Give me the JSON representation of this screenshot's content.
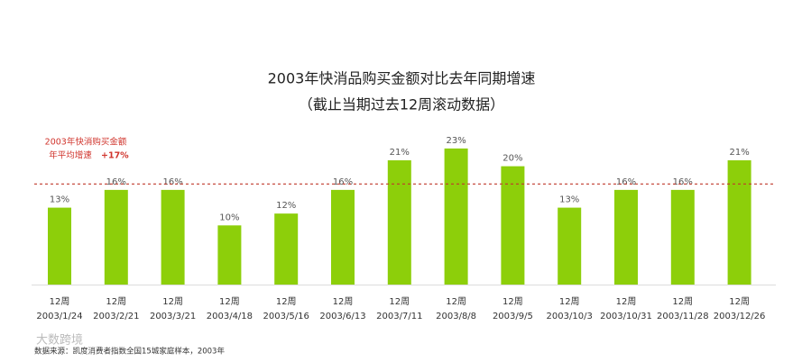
{
  "chart_data": {
    "type": "bar",
    "title": "2003年快消品购买金额对比去年同期增速",
    "subtitle": "（截止当期过去12周滚动数据）",
    "categories": [
      "2003/1/24",
      "2003/2/21",
      "2003/3/21",
      "2003/4/18",
      "2003/5/16",
      "2003/6/13",
      "2003/7/11",
      "2003/8/8",
      "2003/9/5",
      "2003/10/3",
      "2003/10/31",
      "2003/11/28",
      "2003/12/26"
    ],
    "period_labels": [
      "12周",
      "12周",
      "12周",
      "12周",
      "12周",
      "12周",
      "12周",
      "12周",
      "12周",
      "12周",
      "12周",
      "12周",
      "12周"
    ],
    "values": [
      13,
      16,
      16,
      10,
      12,
      16,
      21,
      23,
      20,
      13,
      16,
      16,
      21
    ],
    "value_labels": [
      "13%",
      "16%",
      "16%",
      "10%",
      "12%",
      "16%",
      "21%",
      "23%",
      "20%",
      "13%",
      "16%",
      "16%",
      "21%"
    ],
    "color": "#8dcf0a",
    "reference_line": {
      "value": 17,
      "label": "+17%",
      "text": [
        "2003年快消购买金额",
        "年平均增速"
      ],
      "color": "#c0392b"
    },
    "source": "数据来源：凯度消费者指数全国15城家庭样本，2003年",
    "watermark": "大数跨境"
  }
}
